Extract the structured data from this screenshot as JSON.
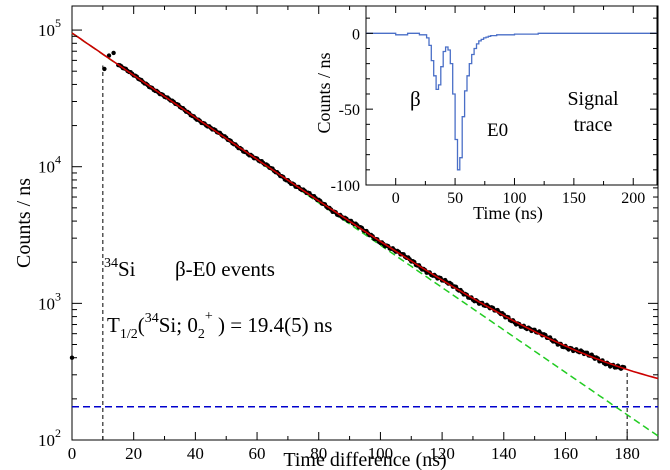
{
  "chart_data": [
    {
      "type": "scatter",
      "title": "",
      "xlabel": "Time difference (ns)",
      "ylabel": "Counts / ns",
      "xlim": [
        0,
        190
      ],
      "ylim": [
        100,
        150000
      ],
      "yscale": "log",
      "grid": false,
      "x_ticks": [
        0,
        20,
        40,
        60,
        80,
        100,
        120,
        140,
        160,
        180
      ],
      "y_ticks": [
        {
          "value": 100,
          "base": "10",
          "exp": "2"
        },
        {
          "value": 1000,
          "base": "10",
          "exp": "3"
        },
        {
          "value": 10000,
          "base": "10",
          "exp": "4"
        },
        {
          "value": 100000,
          "base": "10",
          "exp": "5"
        }
      ],
      "annotations": {
        "nucleus_mass": "34",
        "nucleus_symbol": "Si",
        "events": "β-E0 events",
        "halflife_T": "T",
        "halflife_T_sub": "1/2",
        "halflife_open": "(",
        "halflife_mass": "34",
        "halflife_state": "Si; 0",
        "halflife_state_sub": "2",
        "halflife_state_sup": "+",
        "halflife_value": " ) = 19.4(5) ns"
      },
      "half_life_ns": 19.4,
      "fit_curve": {
        "color": "#cc0000",
        "A0": 95000,
        "background": 175
      },
      "exponential_component": {
        "color": "#22cc22",
        "style": "dashed"
      },
      "background_line": {
        "value": 175,
        "color": "#0000cc",
        "style": "dashed"
      },
      "window_markers": [
        10,
        180
      ],
      "points_color": "#000000",
      "points": [
        [
          0,
          400
        ],
        [
          10.5,
          52000
        ],
        [
          12,
          65000
        ],
        [
          13.5,
          68000
        ]
      ]
    },
    {
      "type": "line",
      "title": "",
      "xlabel": "Time (ns)",
      "ylabel": "Counts / ns",
      "xlim": [
        -25,
        220
      ],
      "ylim": [
        -100,
        18
      ],
      "grid": false,
      "x_ticks": [
        0,
        50,
        100,
        150,
        200
      ],
      "y_ticks": [
        -100,
        -50,
        0
      ],
      "color": "#4a6fc7",
      "labels": {
        "beta": "β",
        "e0": "E0",
        "signal_line1": "Signal",
        "signal_line2": "trace"
      },
      "x": [
        -25,
        -10,
        0,
        10,
        20,
        26,
        28,
        30,
        32,
        34,
        36,
        38,
        40,
        42,
        44,
        46,
        48,
        50,
        52,
        54,
        56,
        58,
        60,
        62,
        64,
        66,
        68,
        70,
        72,
        74,
        76,
        78,
        80,
        85,
        90,
        100,
        120,
        140,
        160,
        180,
        200,
        220
      ],
      "y": [
        0,
        0,
        -1,
        0,
        -1,
        -3,
        -8,
        -18,
        -28,
        -37,
        -34,
        -22,
        -12,
        -9,
        -11,
        -20,
        -40,
        -70,
        -90,
        -82,
        -55,
        -38,
        -28,
        -20,
        -14,
        -10,
        -7,
        -5,
        -4,
        -3,
        -2.5,
        -2,
        -1.5,
        -1,
        -1,
        -0.5,
        0,
        0,
        0,
        0,
        0,
        0
      ]
    }
  ]
}
